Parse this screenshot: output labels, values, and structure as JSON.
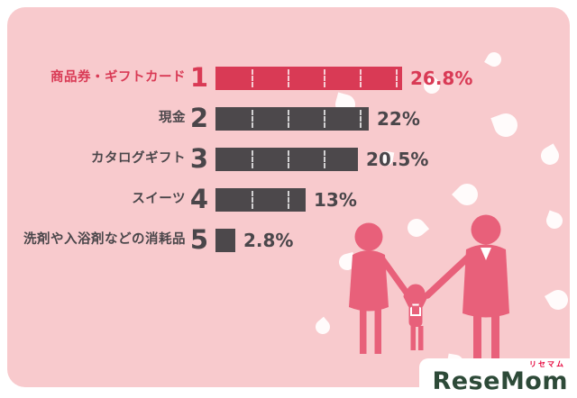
{
  "chart_data": {
    "type": "bar",
    "orientation": "horizontal",
    "unit": "%",
    "title": "",
    "categories": [
      "商品券・ギフトカード",
      "現金",
      "カタログギフト",
      "スイーツ",
      "洗剤や入浴剤などの消耗品"
    ],
    "values": [
      26.8,
      22,
      20.5,
      13,
      2.8
    ],
    "max_value": 26.8,
    "legend": "none",
    "rows": [
      {
        "rank": "1",
        "label": "商品券・ギフトカード",
        "value": 26.8,
        "display": "26.8%",
        "highlight": true
      },
      {
        "rank": "2",
        "label": "現金",
        "value": 22,
        "display": "22%",
        "highlight": false
      },
      {
        "rank": "3",
        "label": "カタログギフト",
        "value": 20.5,
        "display": "20.5%",
        "highlight": false
      },
      {
        "rank": "4",
        "label": "スイーツ",
        "value": 13,
        "display": "13%",
        "highlight": false
      },
      {
        "rank": "5",
        "label": "洗剤や入浴剤などの消耗品",
        "value": 2.8,
        "display": "2.8%",
        "highlight": false
      }
    ]
  },
  "colors": {
    "page_background": "#ffffff",
    "card_background": "#f8cacd",
    "accent_red": "#d93a55",
    "bar_gray": "#4c484b",
    "text_gray": "#4a464a",
    "family_pink": "#e8607a",
    "petal_white": "#ffffff",
    "logo_green": "#2d4a38",
    "logo_ruby_red": "#e50038"
  },
  "footer": {
    "logo_text": "ReseMom",
    "logo_ruby": "リセマム"
  }
}
